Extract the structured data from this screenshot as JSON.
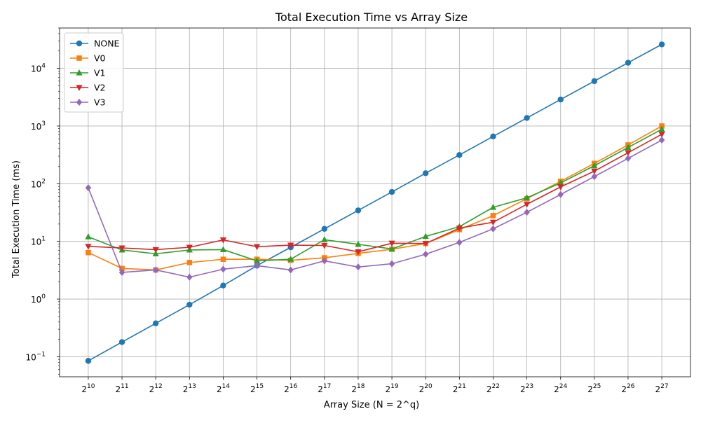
{
  "chart_data": {
    "type": "line",
    "title": "Total Execution Time vs Array Size",
    "xlabel": "Array Size (N = 2^q)",
    "ylabel": "Total Execution Time (ms)",
    "x_tick_base": "2",
    "x": [
      10,
      11,
      12,
      13,
      14,
      15,
      16,
      17,
      18,
      19,
      20,
      21,
      22,
      23,
      24,
      25,
      26,
      27
    ],
    "yscale": "log",
    "ylim": [
      0.045,
      50000
    ],
    "y_ticks": [
      {
        "value": 0.1,
        "base": "10",
        "exp": "−1"
      },
      {
        "value": 1,
        "base": "10",
        "exp": "0"
      },
      {
        "value": 10,
        "base": "10",
        "exp": "1"
      },
      {
        "value": 100,
        "base": "10",
        "exp": "2"
      },
      {
        "value": 1000,
        "base": "10",
        "exp": "3"
      },
      {
        "value": 10000,
        "base": "10",
        "exp": "4"
      }
    ],
    "grid": true,
    "legend_position": "top-left",
    "series": [
      {
        "name": "NONE",
        "color": "#1f77b4",
        "marker": "circle",
        "values": [
          0.085,
          0.18,
          0.38,
          0.8,
          1.72,
          3.8,
          7.9,
          16.5,
          34.5,
          72,
          152,
          315,
          660,
          1380,
          2880,
          6000,
          12500,
          26000
        ]
      },
      {
        "name": "V0",
        "color": "#ff7f0e",
        "marker": "square",
        "values": [
          6.4,
          3.4,
          3.2,
          4.3,
          4.9,
          4.9,
          4.7,
          5.2,
          6.2,
          7.3,
          9.2,
          16,
          28,
          55,
          110,
          225,
          470,
          1000
        ]
      },
      {
        "name": "V1",
        "color": "#2ca02c",
        "marker": "triangle-up",
        "values": [
          12,
          7.1,
          6.1,
          7.1,
          7.2,
          4.6,
          4.9,
          10.7,
          8.9,
          7.4,
          12.2,
          18,
          39,
          57,
          103,
          205,
          425,
          880
        ]
      },
      {
        "name": "V2",
        "color": "#d62728",
        "marker": "triangle-down",
        "values": [
          8.2,
          7.7,
          7.2,
          7.9,
          10.6,
          8.1,
          8.6,
          8.5,
          6.6,
          9.3,
          9.2,
          17,
          21.5,
          44,
          88,
          165,
          345,
          720
        ]
      },
      {
        "name": "V3",
        "color": "#9467bd",
        "marker": "diamond",
        "values": [
          85,
          2.9,
          3.2,
          2.4,
          3.3,
          3.8,
          3.2,
          4.6,
          3.6,
          4.1,
          6,
          9.6,
          16.5,
          32,
          65,
          133,
          275,
          570
        ]
      }
    ]
  }
}
